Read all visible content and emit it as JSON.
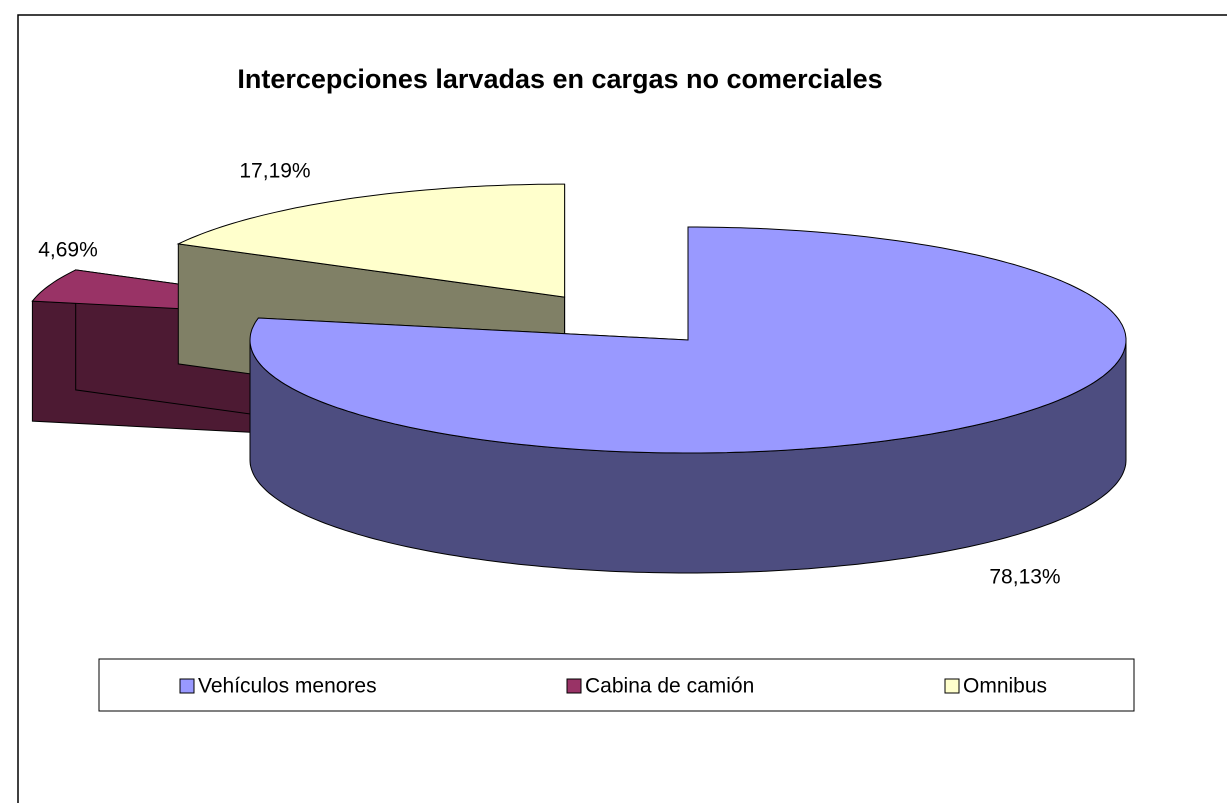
{
  "chart_data": {
    "type": "pie3d",
    "title": "Intercepciones larvadas en cargas no comerciales",
    "categories": [
      "Vehículos menores",
      "Cabina de camión",
      "Omnibus"
    ],
    "values": [
      78.13,
      4.69,
      17.19
    ],
    "value_labels": [
      "78,13%",
      "4,69%",
      "17,19%"
    ],
    "colors": [
      "#9999ff",
      "#993366",
      "#ffffcc"
    ],
    "legend": "bottom"
  }
}
